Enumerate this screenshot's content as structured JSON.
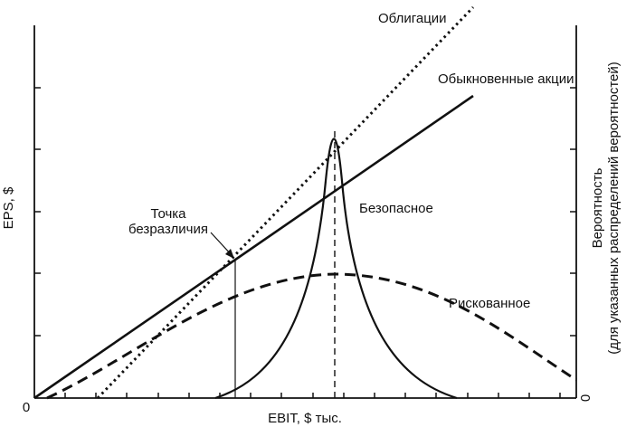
{
  "labels": {
    "bonds": "Облигации",
    "common_stock": "Обыкновенные акции",
    "indifference_line1": "Точка",
    "indifference_line2": "безразличия",
    "safe": "Безопасное",
    "risky": "Рискованное",
    "y_left": "EPS, $",
    "x_axis": "EBIT, $ тыс.",
    "y_right_line1": "Вероятность",
    "y_right_line2": "(для указанных распределений вероятностей)",
    "origin_left": "0",
    "origin_right": "0"
  }
}
